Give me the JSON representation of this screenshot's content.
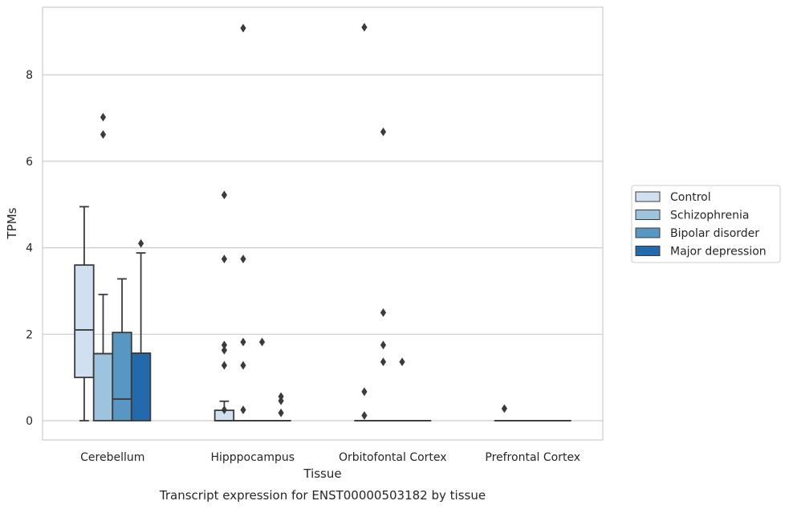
{
  "chart_data": {
    "type": "box",
    "xlabel": "Tissue",
    "ylabel": "TPMs",
    "caption": "Transcript expression for ENST00000503182 by tissue",
    "categories": [
      "Cerebellum",
      "Hipppocampus",
      "Orbitofontal Cortex",
      "Prefrontal Cortex"
    ],
    "y_ticks": [
      0,
      2,
      4,
      6,
      8
    ],
    "ylim": [
      -0.45,
      9.6
    ],
    "grid": true,
    "legend_position": "right",
    "series": [
      {
        "name": "Control",
        "color": "#d0e0f0",
        "boxes": [
          {
            "whisker_low": 0,
            "q1": 1.0,
            "median": 2.1,
            "q3": 3.6,
            "whisker_high": 4.95,
            "outliers": []
          },
          {
            "whisker_low": 0,
            "q1": 0,
            "median": 0,
            "q3": 0.24,
            "whisker_high": 0.45,
            "outliers": [
              5.22,
              3.74,
              1.75,
              1.63,
              1.28,
              0.25
            ]
          },
          {
            "whisker_low": 0,
            "q1": 0,
            "median": 0,
            "q3": 0,
            "whisker_high": 0,
            "outliers": [
              9.1,
              0.67,
              0.12
            ]
          },
          {
            "whisker_low": 0,
            "q1": 0,
            "median": 0,
            "q3": 0,
            "whisker_high": 0,
            "outliers": [
              0.28
            ]
          }
        ]
      },
      {
        "name": "Schizophrenia",
        "color": "#9dc3df",
        "boxes": [
          {
            "whisker_low": 0,
            "q1": 0,
            "median": 1.55,
            "q3": 1.55,
            "whisker_high": 2.92,
            "outliers": [
              7.02,
              6.62
            ]
          },
          {
            "whisker_low": 0,
            "q1": 0,
            "median": 0,
            "q3": 0,
            "whisker_high": 0,
            "outliers": [
              9.08,
              3.74,
              1.82,
              1.28,
              0.25
            ]
          },
          {
            "whisker_low": 0,
            "q1": 0,
            "median": 0,
            "q3": 0,
            "whisker_high": 0,
            "outliers": [
              6.68,
              2.5,
              1.75,
              1.36
            ]
          },
          {
            "whisker_low": 0,
            "q1": 0,
            "median": 0,
            "q3": 0,
            "whisker_high": 0,
            "outliers": []
          }
        ]
      },
      {
        "name": "Bipolar disorder",
        "color": "#5896c4",
        "boxes": [
          {
            "whisker_low": 0,
            "q1": 0,
            "median": 0.5,
            "q3": 2.04,
            "whisker_high": 3.28,
            "outliers": []
          },
          {
            "whisker_low": 0,
            "q1": 0,
            "median": 0,
            "q3": 0,
            "whisker_high": 0,
            "outliers": [
              1.82
            ]
          },
          {
            "whisker_low": 0,
            "q1": 0,
            "median": 0,
            "q3": 0,
            "whisker_high": 0,
            "outliers": [
              1.36
            ]
          },
          {
            "whisker_low": 0,
            "q1": 0,
            "median": 0,
            "q3": 0,
            "whisker_high": 0,
            "outliers": []
          }
        ]
      },
      {
        "name": "Major depression",
        "color": "#2369ab",
        "boxes": [
          {
            "whisker_low": 0,
            "q1": 0,
            "median": 1.56,
            "q3": 1.56,
            "whisker_high": 3.88,
            "outliers": [
              4.1
            ]
          },
          {
            "whisker_low": 0,
            "q1": 0,
            "median": 0,
            "q3": 0,
            "whisker_high": 0,
            "outliers": [
              0.56,
              0.46,
              0.18
            ]
          },
          {
            "whisker_low": 0,
            "q1": 0,
            "median": 0,
            "q3": 0,
            "whisker_high": 0,
            "outliers": []
          },
          {
            "whisker_low": 0,
            "q1": 0,
            "median": 0,
            "q3": 0,
            "whisker_high": 0,
            "outliers": []
          }
        ]
      }
    ]
  }
}
